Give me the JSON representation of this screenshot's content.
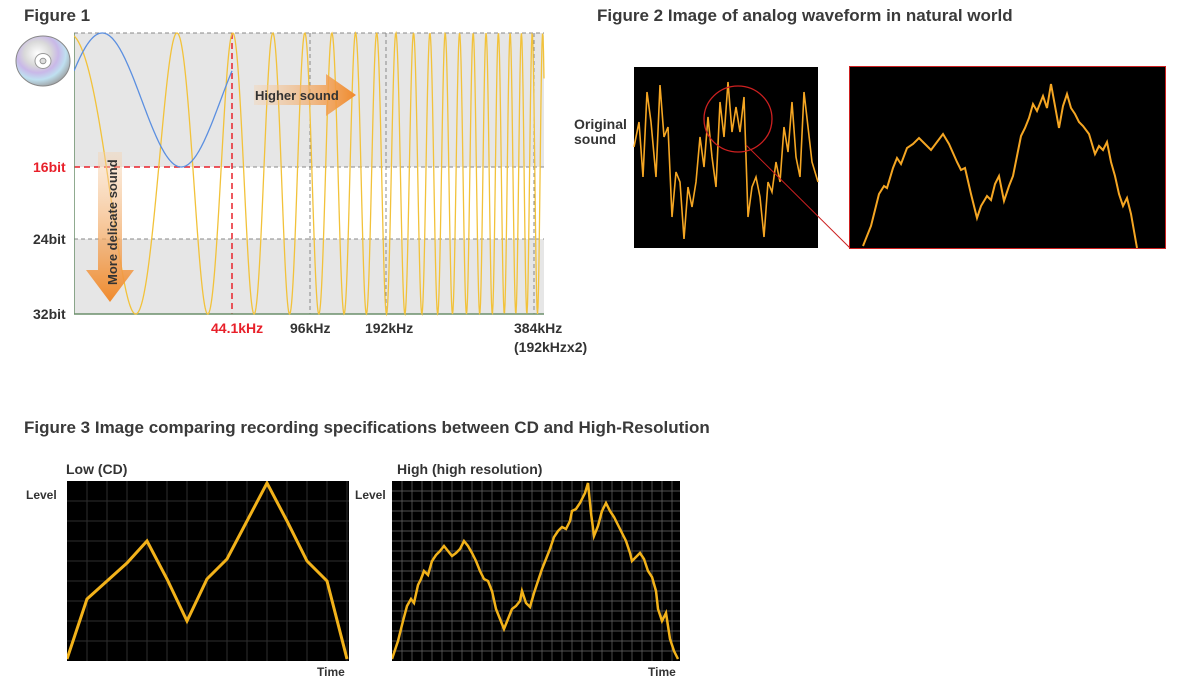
{
  "figure1": {
    "title": "Figure 1",
    "y_ticks": [
      "16bit",
      "24bit",
      "32bit"
    ],
    "x_ticks": [
      "44.1kHz",
      "96kHz",
      "192kHz",
      "384kHz",
      "(192kHzx2)"
    ],
    "arrow_right_label": "Higher sound",
    "arrow_down_label": "More delicate sound",
    "cd_icon": "compact-disc-icon",
    "colors": {
      "highlight": "#e8202a",
      "cd_wave": "#5b8fe0",
      "hires_wave": "#f2c23a",
      "arrow": "#f08a2c",
      "band": "#e8e8e8"
    }
  },
  "figure2": {
    "title": "Figure 2  Image of analog waveform in natural world",
    "label_line1": "Original",
    "label_line2": "sound",
    "colors": {
      "wave": "#f5a623",
      "zoom": "#cc2020"
    }
  },
  "figure3": {
    "title": "Figure 3  Image comparing recording specifications between CD and High-Resolution",
    "low": {
      "title": "Low (CD)",
      "ylabel": "Level",
      "xlabel": "Time"
    },
    "high": {
      "title": "High (high resolution)",
      "ylabel": "Level",
      "xlabel": "Time"
    }
  }
}
